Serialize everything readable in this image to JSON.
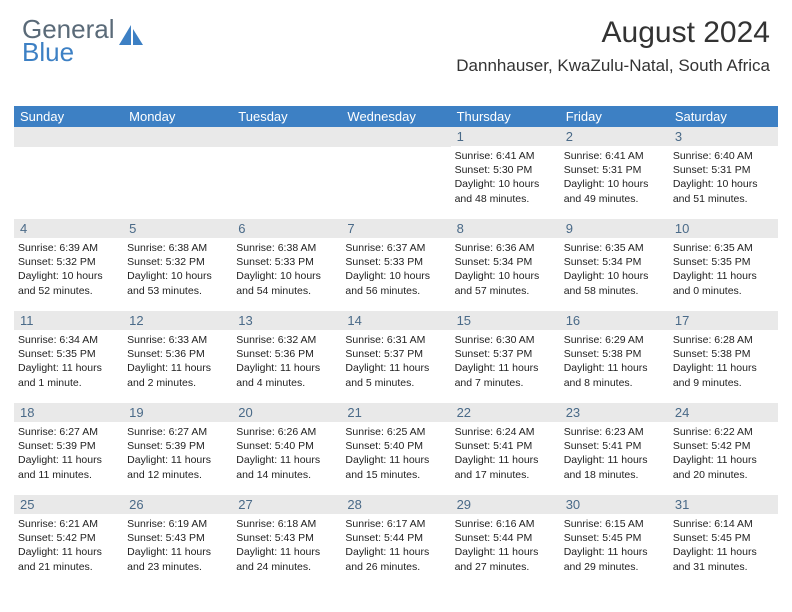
{
  "brand": {
    "text1": "General",
    "text2": "Blue"
  },
  "title": "August 2024",
  "location": "Dannhauser, KwaZulu-Natal, South Africa",
  "colors": {
    "header_bg": "#3d80c4",
    "header_fg": "#ffffff",
    "daynum_bg": "#e9e9e9",
    "daynum_fg": "#4a6a88",
    "brand_gray": "#5a6a78",
    "brand_blue": "#3d80c4"
  },
  "columns": [
    "Sunday",
    "Monday",
    "Tuesday",
    "Wednesday",
    "Thursday",
    "Friday",
    "Saturday"
  ],
  "weeks": [
    [
      {
        "blank": true
      },
      {
        "blank": true
      },
      {
        "blank": true
      },
      {
        "blank": true
      },
      {
        "day": "1",
        "sunrise": "6:41 AM",
        "sunset": "5:30 PM",
        "daylight": "10 hours and 48 minutes."
      },
      {
        "day": "2",
        "sunrise": "6:41 AM",
        "sunset": "5:31 PM",
        "daylight": "10 hours and 49 minutes."
      },
      {
        "day": "3",
        "sunrise": "6:40 AM",
        "sunset": "5:31 PM",
        "daylight": "10 hours and 51 minutes."
      }
    ],
    [
      {
        "day": "4",
        "sunrise": "6:39 AM",
        "sunset": "5:32 PM",
        "daylight": "10 hours and 52 minutes."
      },
      {
        "day": "5",
        "sunrise": "6:38 AM",
        "sunset": "5:32 PM",
        "daylight": "10 hours and 53 minutes."
      },
      {
        "day": "6",
        "sunrise": "6:38 AM",
        "sunset": "5:33 PM",
        "daylight": "10 hours and 54 minutes."
      },
      {
        "day": "7",
        "sunrise": "6:37 AM",
        "sunset": "5:33 PM",
        "daylight": "10 hours and 56 minutes."
      },
      {
        "day": "8",
        "sunrise": "6:36 AM",
        "sunset": "5:34 PM",
        "daylight": "10 hours and 57 minutes."
      },
      {
        "day": "9",
        "sunrise": "6:35 AM",
        "sunset": "5:34 PM",
        "daylight": "10 hours and 58 minutes."
      },
      {
        "day": "10",
        "sunrise": "6:35 AM",
        "sunset": "5:35 PM",
        "daylight": "11 hours and 0 minutes."
      }
    ],
    [
      {
        "day": "11",
        "sunrise": "6:34 AM",
        "sunset": "5:35 PM",
        "daylight": "11 hours and 1 minute."
      },
      {
        "day": "12",
        "sunrise": "6:33 AM",
        "sunset": "5:36 PM",
        "daylight": "11 hours and 2 minutes."
      },
      {
        "day": "13",
        "sunrise": "6:32 AM",
        "sunset": "5:36 PM",
        "daylight": "11 hours and 4 minutes."
      },
      {
        "day": "14",
        "sunrise": "6:31 AM",
        "sunset": "5:37 PM",
        "daylight": "11 hours and 5 minutes."
      },
      {
        "day": "15",
        "sunrise": "6:30 AM",
        "sunset": "5:37 PM",
        "daylight": "11 hours and 7 minutes."
      },
      {
        "day": "16",
        "sunrise": "6:29 AM",
        "sunset": "5:38 PM",
        "daylight": "11 hours and 8 minutes."
      },
      {
        "day": "17",
        "sunrise": "6:28 AM",
        "sunset": "5:38 PM",
        "daylight": "11 hours and 9 minutes."
      }
    ],
    [
      {
        "day": "18",
        "sunrise": "6:27 AM",
        "sunset": "5:39 PM",
        "daylight": "11 hours and 11 minutes."
      },
      {
        "day": "19",
        "sunrise": "6:27 AM",
        "sunset": "5:39 PM",
        "daylight": "11 hours and 12 minutes."
      },
      {
        "day": "20",
        "sunrise": "6:26 AM",
        "sunset": "5:40 PM",
        "daylight": "11 hours and 14 minutes."
      },
      {
        "day": "21",
        "sunrise": "6:25 AM",
        "sunset": "5:40 PM",
        "daylight": "11 hours and 15 minutes."
      },
      {
        "day": "22",
        "sunrise": "6:24 AM",
        "sunset": "5:41 PM",
        "daylight": "11 hours and 17 minutes."
      },
      {
        "day": "23",
        "sunrise": "6:23 AM",
        "sunset": "5:41 PM",
        "daylight": "11 hours and 18 minutes."
      },
      {
        "day": "24",
        "sunrise": "6:22 AM",
        "sunset": "5:42 PM",
        "daylight": "11 hours and 20 minutes."
      }
    ],
    [
      {
        "day": "25",
        "sunrise": "6:21 AM",
        "sunset": "5:42 PM",
        "daylight": "11 hours and 21 minutes."
      },
      {
        "day": "26",
        "sunrise": "6:19 AM",
        "sunset": "5:43 PM",
        "daylight": "11 hours and 23 minutes."
      },
      {
        "day": "27",
        "sunrise": "6:18 AM",
        "sunset": "5:43 PM",
        "daylight": "11 hours and 24 minutes."
      },
      {
        "day": "28",
        "sunrise": "6:17 AM",
        "sunset": "5:44 PM",
        "daylight": "11 hours and 26 minutes."
      },
      {
        "day": "29",
        "sunrise": "6:16 AM",
        "sunset": "5:44 PM",
        "daylight": "11 hours and 27 minutes."
      },
      {
        "day": "30",
        "sunrise": "6:15 AM",
        "sunset": "5:45 PM",
        "daylight": "11 hours and 29 minutes."
      },
      {
        "day": "31",
        "sunrise": "6:14 AM",
        "sunset": "5:45 PM",
        "daylight": "11 hours and 31 minutes."
      }
    ]
  ]
}
